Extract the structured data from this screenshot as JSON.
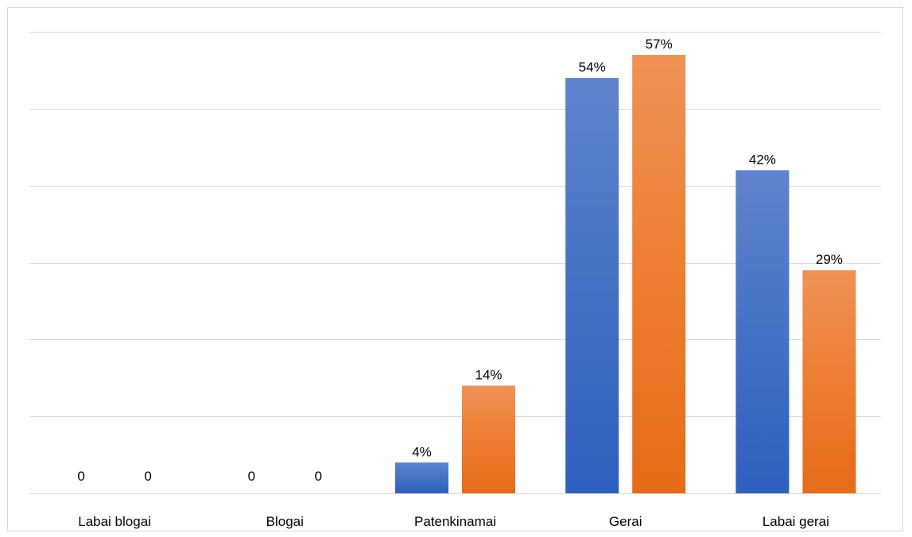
{
  "chart_data": {
    "type": "bar",
    "categories": [
      "Labai blogai",
      "Blogai",
      "Patenkinamai",
      "Gerai",
      "Labai gerai"
    ],
    "series": [
      {
        "values": [
          0,
          0,
          4,
          54,
          42
        ],
        "labels": [
          "0",
          "0",
          "4%",
          "54%",
          "42%"
        ],
        "color": "#4472c4",
        "color_light": "#6083cc",
        "color_dark": "#2f5fbf"
      },
      {
        "values": [
          0,
          0,
          14,
          57,
          29
        ],
        "labels": [
          "0",
          "0",
          "14%",
          "57%",
          "29%"
        ],
        "color": "#ed7d31",
        "color_light": "#f09257",
        "color_dark": "#e66b18"
      }
    ],
    "ylim": [
      0,
      60
    ],
    "y_grid_step": 10,
    "grid": true,
    "legend": "none",
    "title": "",
    "xlabel": "",
    "ylabel": ""
  }
}
